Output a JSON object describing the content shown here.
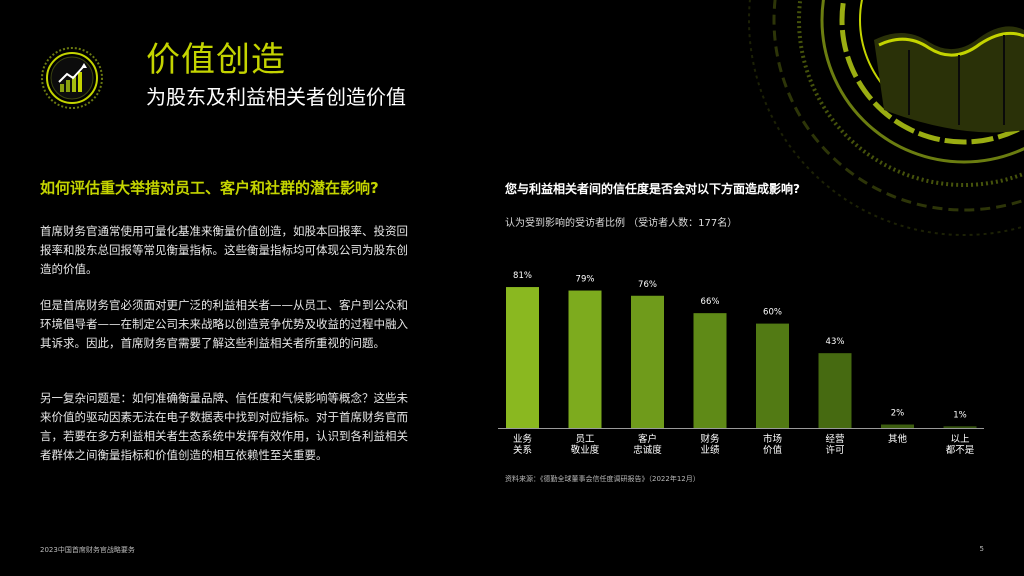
{
  "header": {
    "title": "价值创造",
    "subtitle": "为股东及利益相关者创造价值"
  },
  "left": {
    "question": "如何评估重大举措对员工、客户和社群的潜在影响?",
    "paragraphs": [
      "首席财务官通常使用可量化基准来衡量价值创造，如股本回报率、投资回报率和股东总回报等常见衡量指标。这些衡量指标均可体现公司为股东创造的价值。",
      "但是首席财务官必须面对更广泛的利益相关者——从员工、客户到公众和环境倡导者——在制定公司未来战略以创造竞争优势及收益的过程中融入其诉求。因此，首席财务官需要了解这些利益相关者所重视的问题。",
      "另一复杂问题是：如何准确衡量品牌、信任度和气候影响等概念？这些未来价值的驱动因素无法在电子数据表中找到对应指标。对于首席财务官而言，若要在多方利益相关者生态系统中发挥有效作用，认识到各利益相关者群体之间衡量指标和价值创造的相互依赖性至关重要。"
    ]
  },
  "chart_data": {
    "type": "bar",
    "title": "您与利益相关者间的信任度是否会对以下方面造成影响?",
    "subtitle": "认为受到影响的受访者比例 （受访者人数：177名）",
    "categories": [
      [
        "业务",
        "关系"
      ],
      [
        "员工",
        "敬业度"
      ],
      [
        "客户",
        "忠诚度"
      ],
      [
        "财务",
        "业绩"
      ],
      [
        "市场",
        "价值"
      ],
      [
        "经营",
        "许可"
      ],
      [
        "其他"
      ],
      [
        "以上",
        "都不是"
      ]
    ],
    "values": [
      81,
      79,
      76,
      66,
      60,
      43,
      2,
      1
    ],
    "value_labels": [
      "81%",
      "79%",
      "76%",
      "66%",
      "60%",
      "43%",
      "2%",
      "1%"
    ],
    "colors": [
      "#8ab820",
      "#7dab1e",
      "#6f9b1b",
      "#5f8a17",
      "#527a14",
      "#466a11",
      "#3d5e10",
      "#34520e"
    ],
    "ylim": [
      0,
      100
    ],
    "source": "资料来源：《德勤全球董事会信任度调研报告》（2022年12月）"
  },
  "footer": {
    "text": "2023中国首席财务官战略要务",
    "page": "5"
  }
}
